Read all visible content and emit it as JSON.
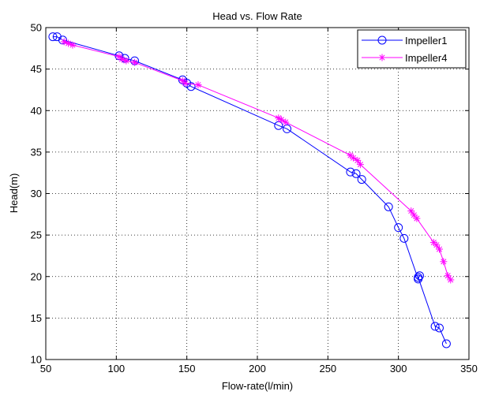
{
  "chart_data": {
    "type": "line",
    "title": "Head vs. Flow Rate",
    "xlabel": "Flow-rate(l/min)",
    "ylabel": "Head(m)",
    "xlim": [
      50,
      350
    ],
    "ylim": [
      10,
      50
    ],
    "xticks": [
      50,
      100,
      150,
      200,
      250,
      300,
      350
    ],
    "yticks": [
      10,
      15,
      20,
      25,
      30,
      35,
      40,
      45,
      50
    ],
    "grid": "dotted",
    "legend_position": "top-right",
    "series": [
      {
        "name": "Impeller1",
        "color": "#0000ff",
        "marker": "circle",
        "x": [
          55,
          58,
          62,
          102,
          106,
          113,
          147,
          150,
          153,
          215,
          221,
          266,
          270,
          274,
          293,
          300,
          304,
          314,
          315,
          314,
          326,
          329,
          334
        ],
        "y": [
          48.9,
          48.9,
          48.5,
          46.6,
          46.3,
          46.0,
          43.7,
          43.3,
          42.9,
          38.2,
          37.8,
          32.6,
          32.4,
          31.7,
          28.4,
          25.9,
          24.6,
          19.7,
          20.1,
          19.9,
          14.0,
          13.8,
          11.9
        ]
      },
      {
        "name": "Impeller4",
        "color": "#ff00ff",
        "marker": "asterisk",
        "x": [
          63,
          66,
          69,
          102,
          104,
          107,
          113,
          147,
          149,
          158,
          215,
          217,
          220,
          266,
          268,
          271,
          273,
          309,
          311,
          313,
          325,
          327,
          329,
          332,
          335,
          337
        ],
        "y": [
          48.3,
          48.1,
          47.9,
          46.5,
          46.2,
          46.0,
          45.8,
          43.6,
          43.3,
          43.1,
          39.1,
          38.9,
          38.6,
          34.6,
          34.3,
          34.0,
          33.5,
          27.9,
          27.4,
          27.0,
          24.1,
          23.8,
          23.3,
          21.8,
          20.1,
          19.6
        ]
      }
    ]
  }
}
